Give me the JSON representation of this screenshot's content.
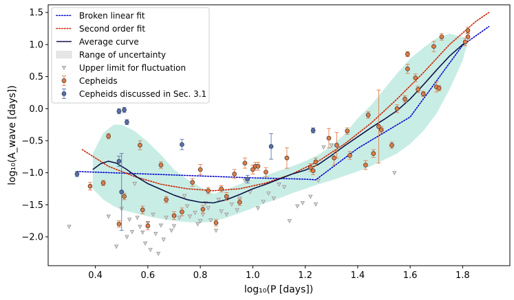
{
  "chart_data": {
    "type": "scatter",
    "xlabel": "log₁₀(P [days])",
    "ylabel": "log₁₀(A_wave [days])",
    "xlim": [
      0.22,
      1.98
    ],
    "ylim": [
      -2.45,
      1.62
    ],
    "xticks": [
      0.4,
      0.6,
      0.8,
      1.0,
      1.2,
      1.4,
      1.6,
      1.8
    ],
    "xtick_labels": [
      "0.4",
      "0.6",
      "0.8",
      "1.0",
      "1.2",
      "1.4",
      "1.6",
      "1.8"
    ],
    "yticks": [
      -2.0,
      -1.5,
      -1.0,
      -0.5,
      0.0,
      0.5,
      1.0,
      1.5
    ],
    "ytick_labels": [
      "−2.0",
      "−1.5",
      "−1.0",
      "−0.5",
      "0.0",
      "0.5",
      "1.0",
      "1.5"
    ],
    "grid": false,
    "legend_position": "top-left",
    "colors": {
      "broken_fit": "#0000cc",
      "second_order": "#cc2200",
      "average": "#0b1145",
      "band": "#7dd3c0",
      "upper_limit": "#8c8c8c",
      "cepheid": "#e07b45",
      "cepheid_sec31": "#5470b4"
    },
    "legend": [
      {
        "label": "Broken linear fit",
        "kind": "dotted-line",
        "color": "#0000cc"
      },
      {
        "label": "Second order fit",
        "kind": "dotted-line",
        "color": "#cc2200"
      },
      {
        "label": "Average curve",
        "kind": "line",
        "color": "#0b1145"
      },
      {
        "label": "Range of uncertainty",
        "kind": "patch",
        "color": "#e6e6e6"
      },
      {
        "label": "Upper limit for fluctuation",
        "kind": "triangle",
        "color": "#8c8c8c"
      },
      {
        "label": "Cepheids",
        "kind": "errorpoint",
        "color": "#e07b45"
      },
      {
        "label": "Cepheids discussed in Sec. 3.1",
        "kind": "errorpoint",
        "color": "#5470b4"
      }
    ],
    "series": [
      {
        "name": "Broken linear fit",
        "style": "dotted",
        "x": [
          0.33,
          0.6,
          0.8,
          1.0,
          1.1,
          1.2,
          1.24,
          1.4,
          1.6,
          1.8,
          1.9
        ],
        "y": [
          -0.98,
          -1.02,
          -1.05,
          -1.08,
          -1.09,
          -1.1,
          -1.11,
          -0.62,
          -0.13,
          0.99,
          1.28
        ]
      },
      {
        "name": "Second order fit",
        "style": "dotted",
        "x": [
          0.35,
          0.45,
          0.55,
          0.65,
          0.75,
          0.85,
          0.95,
          1.05,
          1.15,
          1.25,
          1.35,
          1.45,
          1.55,
          1.65,
          1.75,
          1.85,
          1.9
        ],
        "y": [
          -0.64,
          -0.9,
          -1.06,
          -1.18,
          -1.25,
          -1.28,
          -1.25,
          -1.16,
          -1.02,
          -0.82,
          -0.55,
          -0.23,
          0.15,
          0.56,
          1.0,
          1.36,
          1.5
        ]
      },
      {
        "name": "Average curve",
        "style": "solid",
        "x": [
          0.39,
          0.42,
          0.45,
          0.48,
          0.52,
          0.56,
          0.6,
          0.65,
          0.7,
          0.75,
          0.8,
          0.85,
          0.9,
          0.95,
          1.0,
          1.05,
          1.1,
          1.15,
          1.2,
          1.25,
          1.3,
          1.35,
          1.4,
          1.45,
          1.5,
          1.55,
          1.6,
          1.65,
          1.7,
          1.75,
          1.8,
          1.82
        ],
        "y": [
          -0.95,
          -0.86,
          -0.82,
          -0.85,
          -0.95,
          -1.07,
          -1.17,
          -1.26,
          -1.35,
          -1.42,
          -1.46,
          -1.47,
          -1.42,
          -1.34,
          -1.25,
          -1.18,
          -1.1,
          -1.02,
          -0.96,
          -0.87,
          -0.73,
          -0.58,
          -0.44,
          -0.3,
          -0.17,
          -0.03,
          0.15,
          0.37,
          0.6,
          0.82,
          1.0,
          1.05
        ]
      }
    ],
    "uncertainty_band": {
      "name": "Range of uncertainty",
      "x": [
        0.39,
        0.43,
        0.47,
        0.5,
        0.55,
        0.6,
        0.65,
        0.7,
        0.75,
        0.8,
        0.85,
        0.9,
        0.95,
        1.0,
        1.05,
        1.1,
        1.15,
        1.2,
        1.25,
        1.3,
        1.35,
        1.4,
        1.45,
        1.5,
        1.55,
        1.6,
        1.65,
        1.7,
        1.75,
        1.8,
        1.82
      ],
      "upper": [
        -0.7,
        -0.38,
        -0.25,
        -0.25,
        -0.35,
        -0.52,
        -0.72,
        -0.95,
        -1.1,
        -1.22,
        -1.33,
        -1.26,
        -1.18,
        -1.1,
        -1.04,
        -0.97,
        -0.9,
        -0.82,
        -0.72,
        -0.58,
        -0.4,
        -0.15,
        0.05,
        0.3,
        0.55,
        0.78,
        0.95,
        1.1,
        1.17,
        1.12,
        1.05
      ],
      "lower": [
        -1.25,
        -1.42,
        -1.52,
        -1.58,
        -1.63,
        -1.68,
        -1.72,
        -1.75,
        -1.77,
        -1.78,
        -1.76,
        -1.7,
        -1.63,
        -1.55,
        -1.47,
        -1.4,
        -1.32,
        -1.25,
        -1.18,
        -1.12,
        -1.05,
        -0.98,
        -0.9,
        -0.8,
        -0.7,
        -0.55,
        -0.35,
        -0.08,
        0.3,
        0.75,
        1.05
      ]
    },
    "upper_limits": {
      "name": "Upper limit for fluctuation",
      "x": [
        0.3,
        0.45,
        0.48,
        0.5,
        0.52,
        0.53,
        0.54,
        0.55,
        0.56,
        0.57,
        0.58,
        0.59,
        0.6,
        0.61,
        0.62,
        0.63,
        0.64,
        0.65,
        0.66,
        0.67,
        0.69,
        0.7,
        0.72,
        0.74,
        0.75,
        0.76,
        0.78,
        0.79,
        0.8,
        0.81,
        0.82,
        0.83,
        0.84,
        0.86,
        0.87,
        0.88,
        0.9,
        0.92,
        0.94,
        0.95,
        0.97,
        0.99,
        1.02,
        1.04,
        1.06,
        1.08,
        1.1,
        1.12,
        1.14,
        1.17,
        1.19,
        1.22,
        1.24,
        1.25,
        1.27,
        1.3,
        1.54
      ],
      "y": [
        -1.84,
        -1.68,
        -2.15,
        -1.56,
        -2.0,
        -1.73,
        -1.92,
        -1.17,
        -1.7,
        -1.84,
        -1.93,
        -2.1,
        -1.78,
        -2.2,
        -1.65,
        -1.95,
        -2.26,
        -1.82,
        -2.04,
        -1.7,
        -1.9,
        -1.83,
        -1.7,
        -1.36,
        -1.52,
        -1.68,
        -1.62,
        -1.8,
        -1.75,
        -1.65,
        -1.47,
        -1.55,
        -1.74,
        -1.9,
        -1.42,
        -1.6,
        -1.65,
        -1.49,
        -1.58,
        -1.4,
        -1.12,
        -1.3,
        -1.55,
        -1.45,
        -1.32,
        -1.4,
        -1.18,
        -1.22,
        -1.75,
        -1.52,
        -1.47,
        -1.37,
        -1.49,
        -1.12,
        -0.6,
        -0.57,
        -1.0
      ]
    },
    "cepheids": {
      "name": "Cepheids",
      "x": [
        0.38,
        0.43,
        0.45,
        0.49,
        0.51,
        0.57,
        0.58,
        0.6,
        0.65,
        0.67,
        0.7,
        0.73,
        0.77,
        0.8,
        0.81,
        0.83,
        0.86,
        0.88,
        0.9,
        0.93,
        0.95,
        0.97,
        1.0,
        1.01,
        1.02,
        1.05,
        1.13,
        1.22,
        1.23,
        1.24,
        1.29,
        1.31,
        1.32,
        1.36,
        1.37,
        1.43,
        1.44,
        1.46,
        1.48,
        1.49,
        1.53,
        1.55,
        1.58,
        1.59,
        1.59,
        1.62,
        1.63,
        1.65,
        1.69,
        1.7,
        1.71,
        1.72,
        1.81,
        1.82,
        1.82
      ],
      "y": [
        -1.21,
        -1.16,
        -0.43,
        -1.8,
        -1.37,
        -0.57,
        -1.58,
        -1.83,
        -0.88,
        -1.42,
        -1.67,
        -1.61,
        -1.15,
        -0.95,
        -1.57,
        -1.28,
        -1.78,
        -1.25,
        -1.37,
        -1.02,
        -1.46,
        -0.85,
        -0.95,
        -0.9,
        -0.9,
        -0.99,
        -0.77,
        -0.92,
        -0.97,
        -0.83,
        -0.46,
        -0.77,
        -0.57,
        -0.35,
        -0.73,
        -0.88,
        -0.1,
        -0.7,
        -0.28,
        -0.33,
        -0.57,
        0.0,
        0.15,
        0.62,
        0.85,
        0.48,
        0.3,
        0.23,
        0.97,
        0.34,
        0.32,
        1.12,
        1.04,
        1.12,
        1.22
      ],
      "yerr": [
        0.06,
        0.04,
        0.04,
        0.05,
        0.05,
        0.07,
        0.06,
        0.06,
        0.05,
        0.05,
        0.06,
        0.06,
        0.06,
        0.08,
        0.06,
        0.05,
        0.05,
        0.05,
        0.06,
        0.07,
        0.05,
        0.08,
        0.07,
        0.06,
        0.06,
        0.07,
        0.16,
        0.06,
        0.06,
        0.06,
        0.15,
        0.11,
        0.2,
        0.05,
        0.06,
        0.07,
        0.05,
        0.06,
        0.57,
        0.05,
        0.05,
        0.06,
        0.05,
        0.07,
        0.04,
        0.06,
        0.05,
        0.04,
        0.08,
        0.08,
        0.04,
        0.05,
        0.06,
        0.06,
        0.05
      ]
    },
    "cepheids_sec31": {
      "name": "Cepheids discussed in Sec. 3.1",
      "x": [
        0.33,
        0.49,
        0.49,
        0.5,
        0.51,
        0.52,
        0.73,
        0.98,
        1.07,
        1.23
      ],
      "y": [
        -1.02,
        -0.82,
        -0.04,
        -1.3,
        -0.02,
        -0.21,
        -0.56,
        -1.1,
        -0.59,
        -0.34
      ],
      "yerr": [
        0.04,
        0.08,
        0.04,
        0.6,
        0.04,
        0.04,
        0.08,
        0.06,
        0.2,
        0.04
      ]
    }
  }
}
